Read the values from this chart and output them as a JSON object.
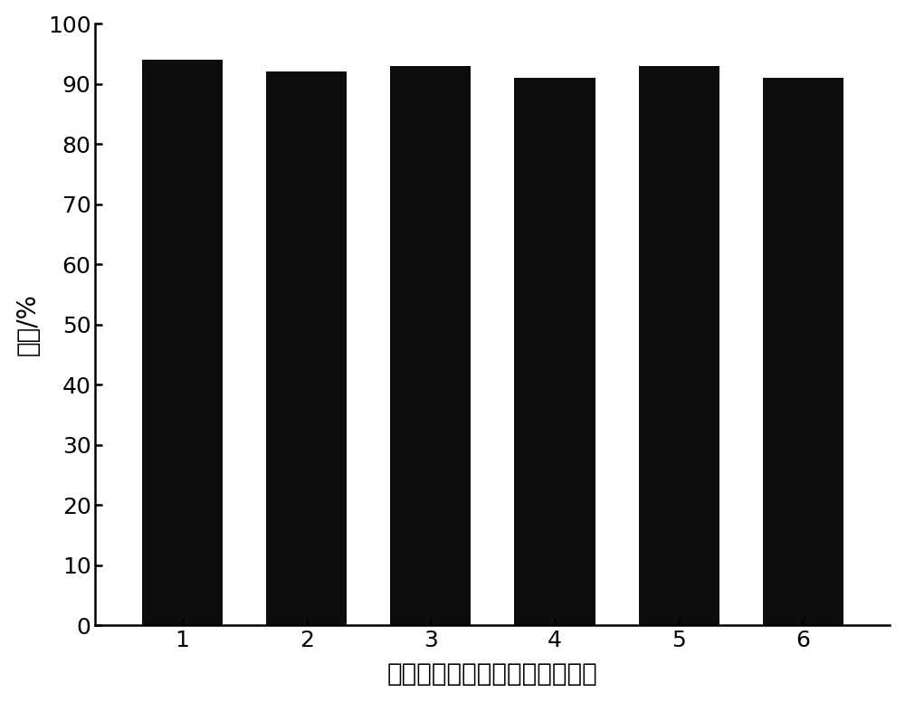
{
  "categories": [
    1,
    2,
    3,
    4,
    5,
    6
  ],
  "values": [
    94,
    92,
    93,
    91,
    93,
    91
  ],
  "bar_color": "#0d0d0d",
  "bar_width": 0.65,
  "ylabel": "产率/%",
  "xlabel": "高酸度离子液体催化剂使用次数",
  "ylim": [
    0,
    100
  ],
  "yticks": [
    0,
    10,
    20,
    30,
    40,
    50,
    60,
    70,
    80,
    90,
    100
  ],
  "background_color": "#ffffff",
  "ylabel_fontsize": 20,
  "xlabel_fontsize": 20,
  "tick_fontsize": 18,
  "spine_linewidth": 1.8,
  "figsize": [
    10.0,
    7.76
  ],
  "dpi": 100
}
